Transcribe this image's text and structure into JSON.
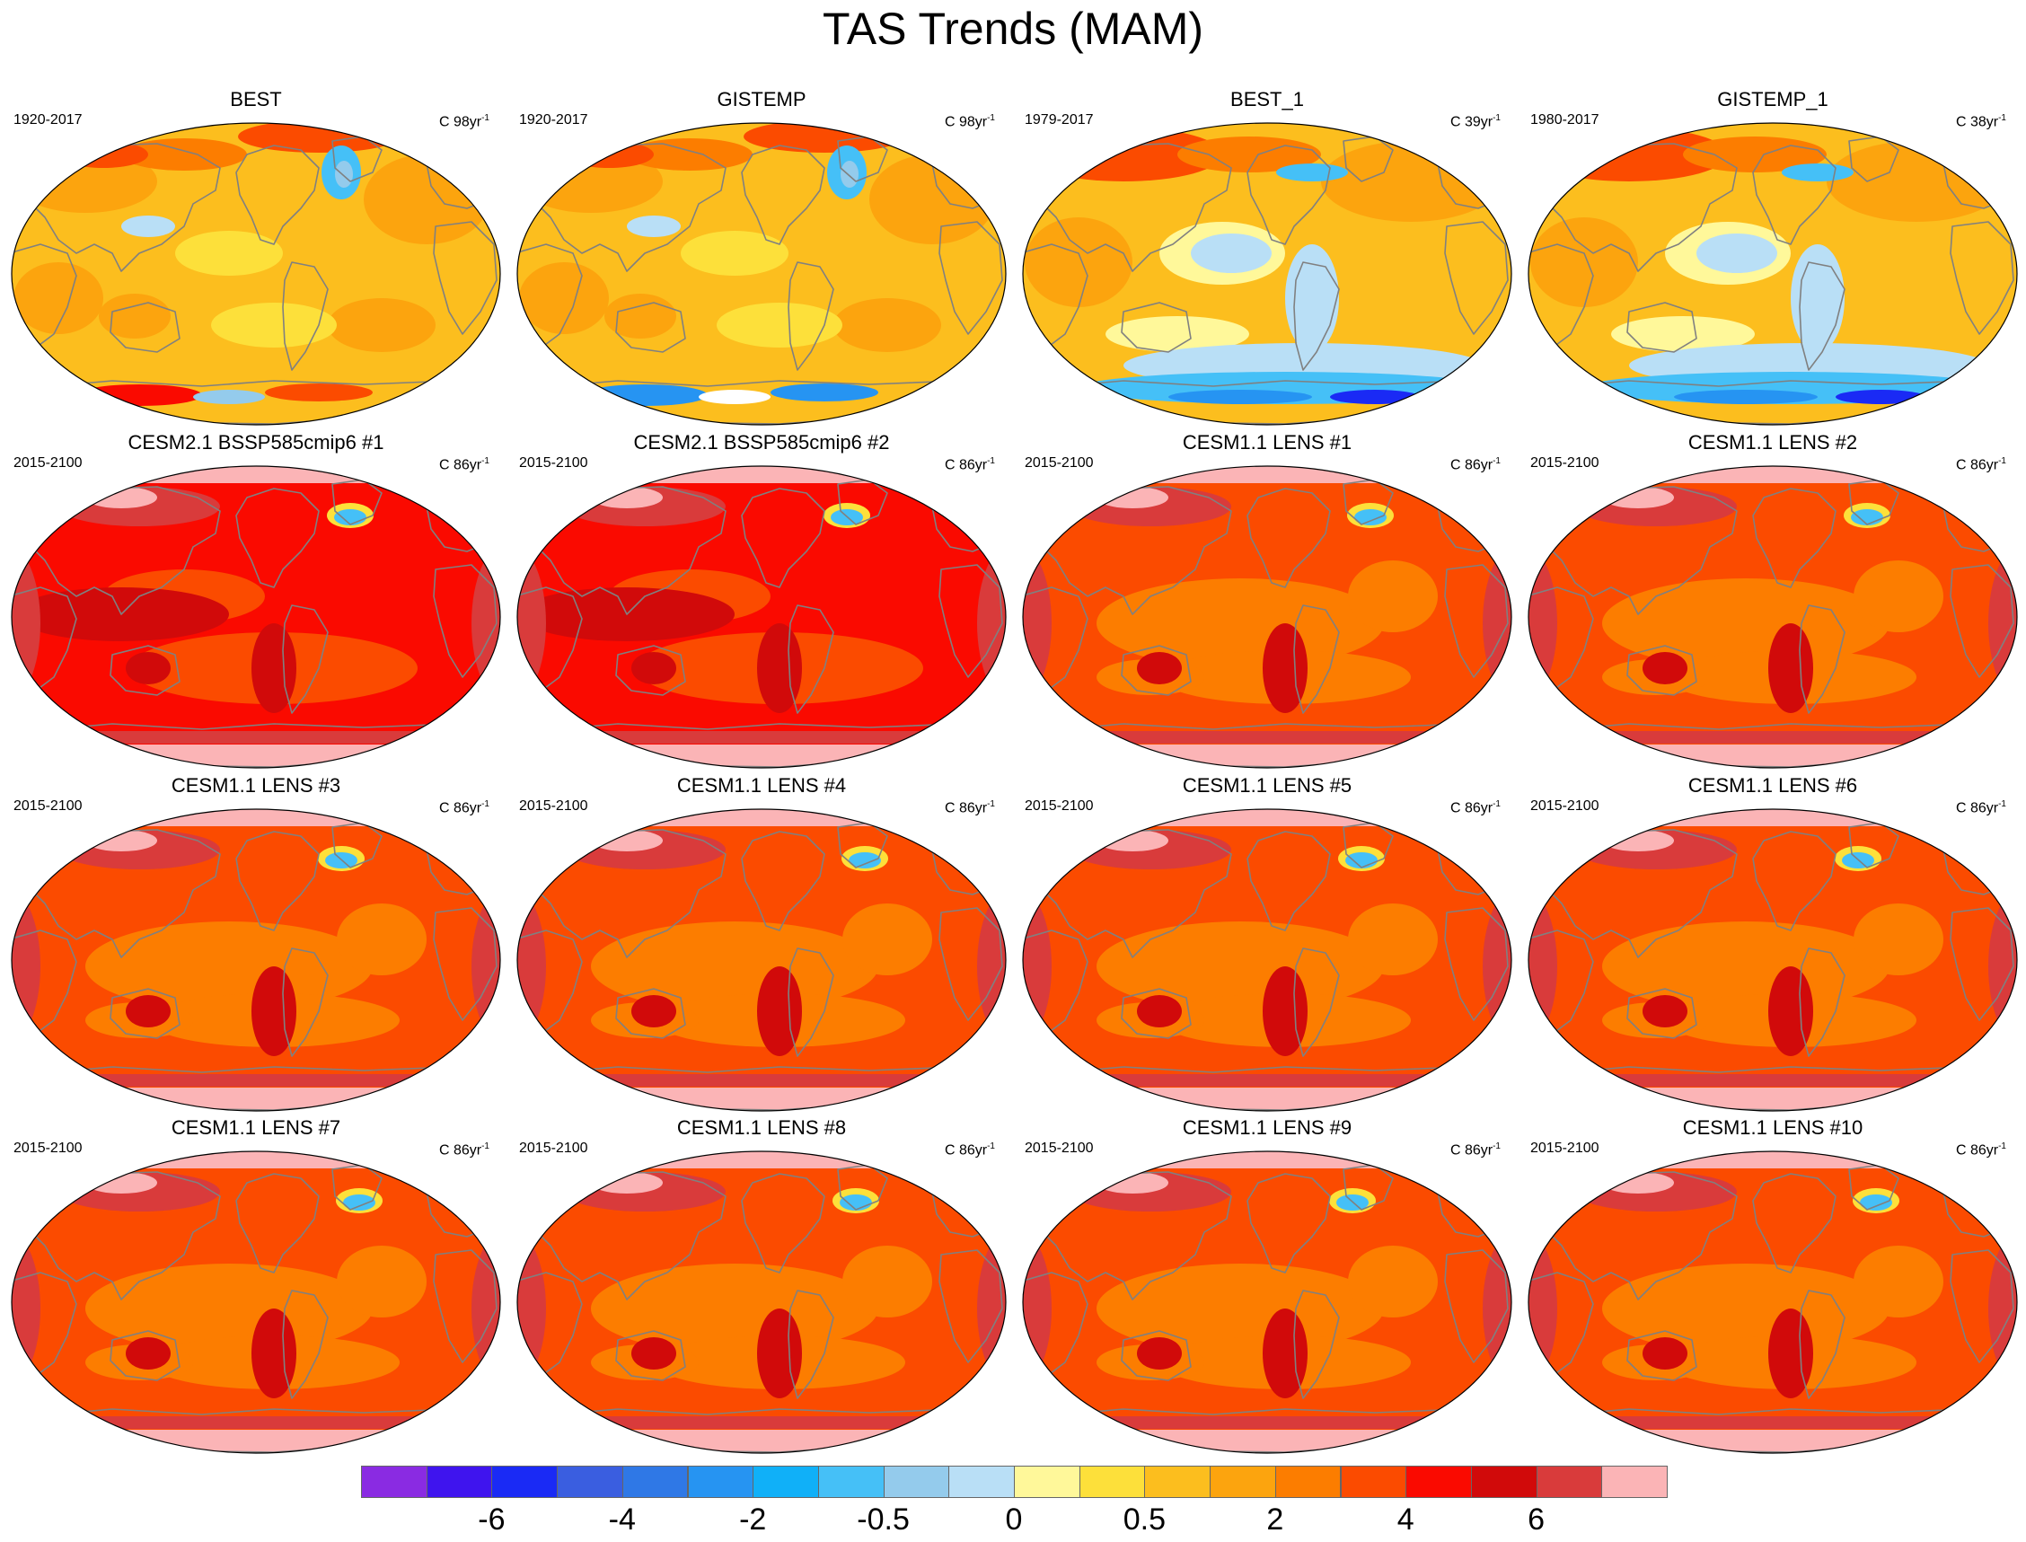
{
  "title": "TAS Trends (MAM)",
  "panels": [
    {
      "title": "BEST",
      "period": "1920-2017",
      "units_base": "C 98yr",
      "units_exp": "-1",
      "style": "obs_old"
    },
    {
      "title": "GISTEMP",
      "period": "1920-2017",
      "units_base": "C 98yr",
      "units_exp": "-1",
      "style": "obs_old"
    },
    {
      "title": "BEST_1",
      "period": "1979-2017",
      "units_base": "C 39yr",
      "units_exp": "-1",
      "style": "obs_recent"
    },
    {
      "title": "GISTEMP_1",
      "period": "1980-2017",
      "units_base": "C 38yr",
      "units_exp": "-1",
      "style": "obs_recent"
    },
    {
      "title": "CESM2.1 BSSP585cmip6 #1",
      "period": "2015-2100",
      "units_base": "C 86yr",
      "units_exp": "-1",
      "style": "cesm2"
    },
    {
      "title": "CESM2.1 BSSP585cmip6 #2",
      "period": "2015-2100",
      "units_base": "C 86yr",
      "units_exp": "-1",
      "style": "cesm2"
    },
    {
      "title": "CESM1.1 LENS #1",
      "period": "2015-2100",
      "units_base": "C 86yr",
      "units_exp": "-1",
      "style": "lens"
    },
    {
      "title": "CESM1.1 LENS #2",
      "period": "2015-2100",
      "units_base": "C 86yr",
      "units_exp": "-1",
      "style": "lens"
    },
    {
      "title": "CESM1.1 LENS #3",
      "period": "2015-2100",
      "units_base": "C 86yr",
      "units_exp": "-1",
      "style": "lens"
    },
    {
      "title": "CESM1.1 LENS #4",
      "period": "2015-2100",
      "units_base": "C 86yr",
      "units_exp": "-1",
      "style": "lens"
    },
    {
      "title": "CESM1.1 LENS #5",
      "period": "2015-2100",
      "units_base": "C 86yr",
      "units_exp": "-1",
      "style": "lens"
    },
    {
      "title": "CESM1.1 LENS #6",
      "period": "2015-2100",
      "units_base": "C 86yr",
      "units_exp": "-1",
      "style": "lens"
    },
    {
      "title": "CESM1.1 LENS #7",
      "period": "2015-2100",
      "units_base": "C 86yr",
      "units_exp": "-1",
      "style": "lens"
    },
    {
      "title": "CESM1.1 LENS #8",
      "period": "2015-2100",
      "units_base": "C 86yr",
      "units_exp": "-1",
      "style": "lens"
    },
    {
      "title": "CESM1.1 LENS #9",
      "period": "2015-2100",
      "units_base": "C 86yr",
      "units_exp": "-1",
      "style": "lens"
    },
    {
      "title": "CESM1.1 LENS #10",
      "period": "2015-2100",
      "units_base": "C 86yr",
      "units_exp": "-1",
      "style": "lens"
    }
  ],
  "colorbar": {
    "colors": [
      "#8a2be2",
      "#3f14ee",
      "#1a2af5",
      "#3a5ee0",
      "#2f78e6",
      "#2694f2",
      "#10b0f8",
      "#45c0f7",
      "#94cbec",
      "#b9dff6",
      "#fff89a",
      "#fde03a",
      "#fcbe1e",
      "#fca40e",
      "#fc7d00",
      "#fb4b00",
      "#fa0a00",
      "#d10a0a",
      "#d93b3b",
      "#fbb4b6"
    ],
    "labels": [
      {
        "text": "-6",
        "boundary": 2
      },
      {
        "text": "-4",
        "boundary": 4
      },
      {
        "text": "-2",
        "boundary": 6
      },
      {
        "text": "-0.5",
        "boundary": 8
      },
      {
        "text": "0",
        "boundary": 10
      },
      {
        "text": "0.5",
        "boundary": 12
      },
      {
        "text": "2",
        "boundary": 14
      },
      {
        "text": "4",
        "boundary": 16
      },
      {
        "text": "6",
        "boundary": 18
      }
    ]
  }
}
